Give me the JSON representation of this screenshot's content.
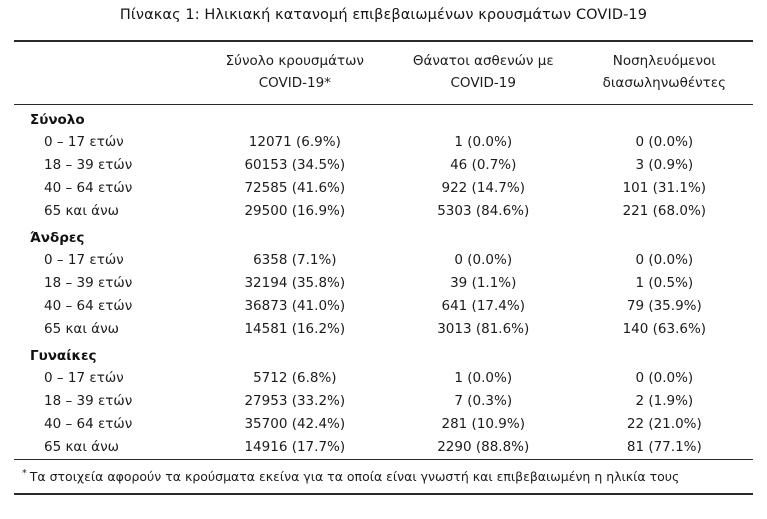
{
  "title": "Πίνακας 1: Ηλικιακή κατανομή επιβεβαιωμένων κρουσμάτων COVID-19",
  "table": {
    "columns": [
      {
        "line1": "Σύνολο κρουσμάτων",
        "line2": "COVID-19*"
      },
      {
        "line1": "Θάνατοι ασθενών με",
        "line2": "COVID-19"
      },
      {
        "line1": "Νοσηλευόμενοι",
        "line2": "διασωληνωθέντες"
      }
    ],
    "sections": [
      {
        "label": "Σύνολο",
        "rows": [
          {
            "age": "0 – 17 ετών",
            "cases": "12071 (6.9%)",
            "deaths": "1 (0.0%)",
            "intubated": "0 (0.0%)"
          },
          {
            "age": "18 – 39 ετών",
            "cases": "60153 (34.5%)",
            "deaths": "46 (0.7%)",
            "intubated": "3 (0.9%)"
          },
          {
            "age": "40 – 64 ετών",
            "cases": "72585 (41.6%)",
            "deaths": "922 (14.7%)",
            "intubated": "101 (31.1%)"
          },
          {
            "age": "65 και άνω",
            "cases": "29500 (16.9%)",
            "deaths": "5303 (84.6%)",
            "intubated": "221 (68.0%)"
          }
        ]
      },
      {
        "label": "Άνδρες",
        "rows": [
          {
            "age": "0 – 17 ετών",
            "cases": "6358 (7.1%)",
            "deaths": "0 (0.0%)",
            "intubated": "0 (0.0%)"
          },
          {
            "age": "18 – 39 ετών",
            "cases": "32194 (35.8%)",
            "deaths": "39 (1.1%)",
            "intubated": "1 (0.5%)"
          },
          {
            "age": "40 – 64 ετών",
            "cases": "36873 (41.0%)",
            "deaths": "641 (17.4%)",
            "intubated": "79 (35.9%)"
          },
          {
            "age": "65 και άνω",
            "cases": "14581 (16.2%)",
            "deaths": "3013 (81.6%)",
            "intubated": "140 (63.6%)"
          }
        ]
      },
      {
        "label": "Γυναίκες",
        "rows": [
          {
            "age": "0 – 17 ετών",
            "cases": "5712 (6.8%)",
            "deaths": "1 (0.0%)",
            "intubated": "0 (0.0%)"
          },
          {
            "age": "18 – 39 ετών",
            "cases": "27953 (33.2%)",
            "deaths": "7 (0.3%)",
            "intubated": "2 (1.9%)"
          },
          {
            "age": "40 – 64 ετών",
            "cases": "35700 (42.4%)",
            "deaths": "281 (10.9%)",
            "intubated": "22 (21.0%)"
          },
          {
            "age": "65 και άνω",
            "cases": "14916 (17.7%)",
            "deaths": "2290 (88.8%)",
            "intubated": "81 (77.1%)"
          }
        ]
      }
    ],
    "footnote_marker": "*",
    "footnote": "Τα στοιχεία αφορούν τα κρούσματα εκείνα για τα οποία είναι γνωστή και επιβεβαιωμένη η ηλικία τους"
  }
}
